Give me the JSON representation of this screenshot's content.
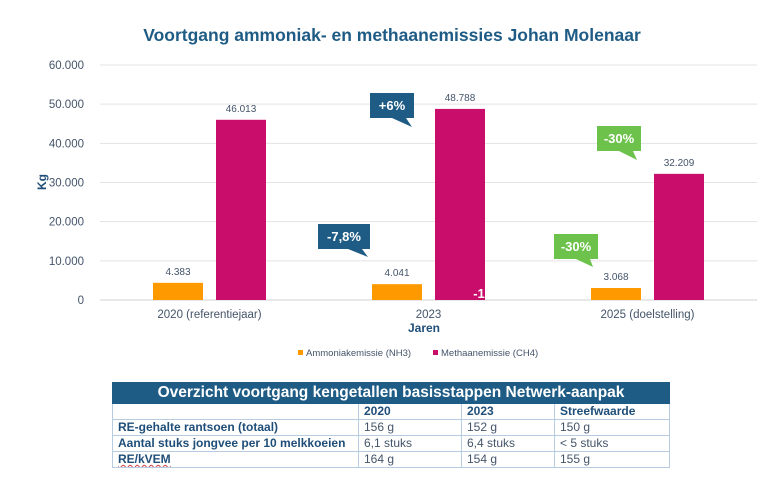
{
  "chart_data": {
    "type": "bar",
    "title": "Voortgang ammoniak- en methaanemissies Johan Molenaar",
    "xlabel": "Jaren",
    "ylabel": "Kg",
    "ylim": [
      0,
      60000
    ],
    "yticks": [
      0,
      10000,
      20000,
      30000,
      40000,
      50000,
      60000
    ],
    "ytick_labels": [
      "0",
      "10.000",
      "20.000",
      "30.000",
      "40.000",
      "50.000",
      "60.000"
    ],
    "grid": true,
    "legend_position": "bottom",
    "categories": [
      "2020 (referentiejaar)",
      "2023",
      "2025 (doelstelling)"
    ],
    "series": [
      {
        "name": "Ammoniakemissie (NH3)",
        "color": "#ff9900",
        "values": [
          4383,
          4041,
          3068
        ],
        "labels": [
          "4.383",
          "4.041",
          "3.068"
        ]
      },
      {
        "name": "Methaanemissie (CH4)",
        "color": "#c80d6b",
        "values": [
          46013,
          48788,
          32209
        ],
        "labels": [
          "46.013",
          "48.788",
          "32.209"
        ]
      }
    ],
    "annotations": [
      {
        "text": "+6%",
        "category": 1,
        "series": 1,
        "color": "#1f5c85"
      },
      {
        "text": "-7,8%",
        "category": 1,
        "series": 0,
        "color": "#1f5c85"
      },
      {
        "text": "-30%",
        "category": 2,
        "series": 1,
        "color": "#6cc24a"
      },
      {
        "text": "-30%",
        "category": 2,
        "series": 0,
        "color": "#6cc24a"
      }
    ],
    "stray_label": "-1"
  },
  "table": {
    "title": "Overzicht voortgang kengetallen basisstappen Netwerk-aanpak",
    "columns": [
      "",
      "2020",
      "2023",
      "Streefwaarde"
    ],
    "rows": [
      {
        "label": "RE-gehalte rantsoen (totaal)",
        "values": [
          "156 g",
          "152 g",
          "150 g"
        ]
      },
      {
        "label": "Aantal stuks jongvee per 10 melkkoeien",
        "values": [
          "6,1 stuks",
          "6,4 stuks",
          "< 5 stuks"
        ]
      },
      {
        "label": "RE/kVEM",
        "values": [
          "164 g",
          "154 g",
          "155 g"
        ]
      }
    ]
  },
  "colors": {
    "title": "#1f5c85",
    "table_header": "#1f5c85",
    "callout_blue": "#1f5c85",
    "callout_green": "#6cc24a"
  }
}
